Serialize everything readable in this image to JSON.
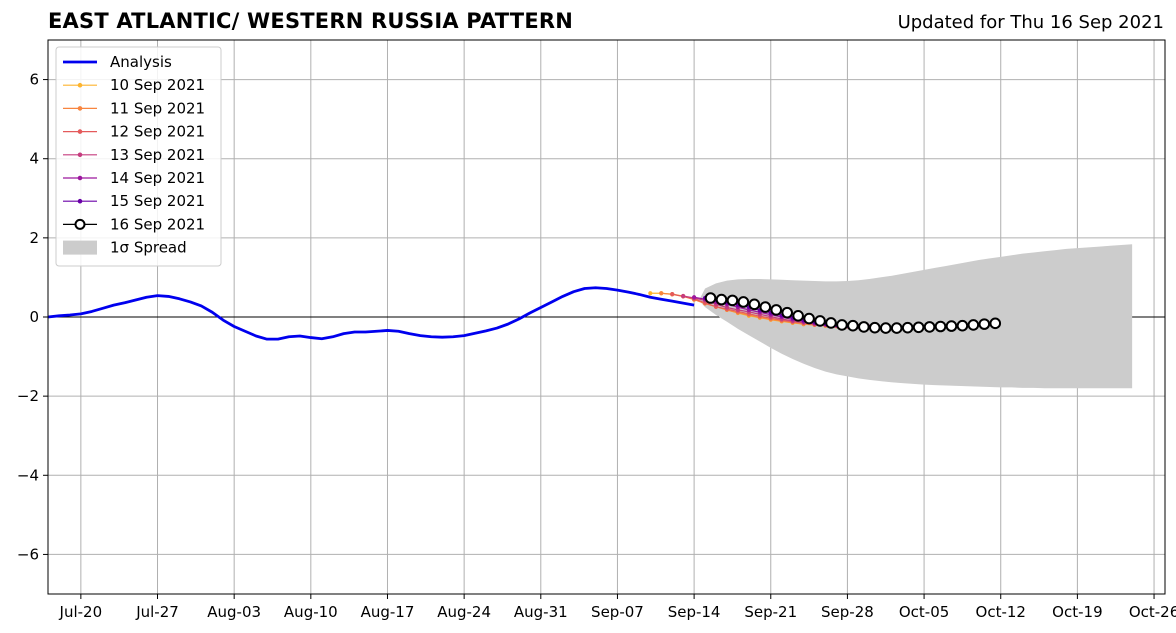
{
  "header": {
    "title": "EAST ATLANTIC/ WESTERN RUSSIA PATTERN",
    "updated": "Updated for Thu 16 Sep 2021"
  },
  "chart_data": {
    "type": "line",
    "title": "EAST ATLANTIC/ WESTERN RUSSIA PATTERN",
    "xlabel": "",
    "ylabel": "",
    "x_start": "2021-07-17",
    "xlim_days": [
      0,
      102
    ],
    "ylim": [
      -7,
      7
    ],
    "yticks": [
      -6,
      -4,
      -2,
      0,
      2,
      4,
      6
    ],
    "ytick_labels": [
      "−6",
      "−4",
      "−2",
      "0",
      "2",
      "4",
      "6"
    ],
    "xticks_day": [
      3,
      10,
      17,
      24,
      31,
      38,
      45,
      52,
      59,
      66,
      73,
      80,
      87,
      94,
      101
    ],
    "xtick_labels": [
      "Jul-20",
      "Jul-27",
      "Aug-03",
      "Aug-10",
      "Aug-17",
      "Aug-24",
      "Aug-31",
      "Sep-07",
      "Sep-14",
      "Sep-21",
      "Sep-28",
      "Oct-05",
      "Oct-12",
      "Oct-19",
      "Oct-26"
    ],
    "grid": true,
    "legend_position": "upper-left",
    "analysis": {
      "name": "Analysis",
      "color": "#0000ee",
      "points": [
        [
          0,
          0.0
        ],
        [
          1,
          0.03
        ],
        [
          2,
          0.05
        ],
        [
          3,
          0.08
        ],
        [
          4,
          0.14
        ],
        [
          5,
          0.22
        ],
        [
          6,
          0.3
        ],
        [
          7,
          0.36
        ],
        [
          8,
          0.43
        ],
        [
          9,
          0.5
        ],
        [
          10,
          0.54
        ],
        [
          11,
          0.52
        ],
        [
          12,
          0.46
        ],
        [
          13,
          0.38
        ],
        [
          14,
          0.28
        ],
        [
          15,
          0.12
        ],
        [
          16,
          -0.08
        ],
        [
          17,
          -0.24
        ],
        [
          18,
          -0.36
        ],
        [
          19,
          -0.48
        ],
        [
          20,
          -0.56
        ],
        [
          21,
          -0.56
        ],
        [
          22,
          -0.5
        ],
        [
          23,
          -0.48
        ],
        [
          24,
          -0.52
        ],
        [
          25,
          -0.55
        ],
        [
          26,
          -0.5
        ],
        [
          27,
          -0.42
        ],
        [
          28,
          -0.38
        ],
        [
          29,
          -0.38
        ],
        [
          30,
          -0.36
        ],
        [
          31,
          -0.34
        ],
        [
          32,
          -0.36
        ],
        [
          33,
          -0.42
        ],
        [
          34,
          -0.47
        ],
        [
          35,
          -0.5
        ],
        [
          36,
          -0.51
        ],
        [
          37,
          -0.5
        ],
        [
          38,
          -0.47
        ],
        [
          39,
          -0.41
        ],
        [
          40,
          -0.35
        ],
        [
          41,
          -0.28
        ],
        [
          42,
          -0.18
        ],
        [
          43,
          -0.05
        ],
        [
          44,
          0.1
        ],
        [
          45,
          0.24
        ],
        [
          46,
          0.38
        ],
        [
          47,
          0.52
        ],
        [
          48,
          0.64
        ],
        [
          49,
          0.72
        ],
        [
          50,
          0.74
        ],
        [
          51,
          0.72
        ],
        [
          52,
          0.68
        ],
        [
          53,
          0.63
        ],
        [
          54,
          0.57
        ],
        [
          55,
          0.5
        ],
        [
          56,
          0.45
        ],
        [
          57,
          0.4
        ],
        [
          58,
          0.35
        ],
        [
          59,
          0.3
        ]
      ]
    },
    "series": [
      {
        "name": "10 Sep 2021",
        "color": "#fdb42f",
        "start_day": 55,
        "values": [
          0.6,
          0.6,
          0.58,
          0.53,
          0.44,
          0.35,
          0.26,
          0.18,
          0.1,
          0.03,
          -0.02,
          -0.07,
          -0.11,
          -0.15,
          -0.18,
          -0.2,
          -0.22,
          -0.23,
          -0.24,
          -0.24,
          -0.25
        ]
      },
      {
        "name": "11 Sep 2021",
        "color": "#f8853f",
        "start_day": 56,
        "values": [
          0.6,
          0.57,
          0.52,
          0.44,
          0.34,
          0.26,
          0.18,
          0.11,
          0.05,
          -0.01,
          -0.06,
          -0.1,
          -0.14,
          -0.18,
          -0.2,
          -0.22,
          -0.23,
          -0.24,
          -0.24,
          -0.25
        ]
      },
      {
        "name": "12 Sep 2021",
        "color": "#e45a5b",
        "start_day": 57,
        "values": [
          0.58,
          0.52,
          0.46,
          0.36,
          0.26,
          0.2,
          0.14,
          0.08,
          0.02,
          -0.03,
          -0.08,
          -0.12,
          -0.15,
          -0.18,
          -0.2,
          -0.21,
          -0.22,
          -0.23,
          -0.24
        ]
      },
      {
        "name": "13 Sep 2021",
        "color": "#c53d7f",
        "start_day": 58,
        "values": [
          0.53,
          0.48,
          0.42,
          0.32,
          0.24,
          0.18,
          0.13,
          0.07,
          0.01,
          -0.05,
          -0.1,
          -0.14,
          -0.18,
          -0.2,
          -0.22,
          -0.23,
          -0.24,
          -0.25
        ]
      },
      {
        "name": "14 Sep 2021",
        "color": "#9c179e",
        "start_day": 59,
        "values": [
          0.5,
          0.45,
          0.38,
          0.32,
          0.25,
          0.18,
          0.12,
          0.06,
          0.0,
          -0.06,
          -0.11,
          -0.15,
          -0.18,
          -0.21,
          -0.23,
          -0.24,
          -0.25
        ]
      },
      {
        "name": "15 Sep 2021",
        "color": "#6a00a8",
        "start_day": 60,
        "values": [
          0.48,
          0.43,
          0.37,
          0.31,
          0.25,
          0.17,
          0.11,
          0.04,
          -0.02,
          -0.08,
          -0.13,
          -0.17,
          -0.2,
          -0.22,
          -0.24,
          -0.25
        ]
      },
      {
        "name": "16 Sep 2021",
        "color": "#000000",
        "start_day": 60.5,
        "values": [
          0.48,
          0.44,
          0.42,
          0.38,
          0.32,
          0.25,
          0.18,
          0.11,
          0.03,
          -0.04,
          -0.1,
          -0.15,
          -0.2,
          -0.22,
          -0.25,
          -0.27,
          -0.28,
          -0.28,
          -0.27,
          -0.26,
          -0.25,
          -0.24,
          -0.23,
          -0.22,
          -0.2,
          -0.18,
          -0.16
        ]
      }
    ],
    "spread": {
      "name": "1σ Spread",
      "color": "#cccccc",
      "days": [
        59.5,
        60,
        61,
        62,
        63,
        64,
        65,
        66,
        67,
        68,
        69,
        70,
        71,
        72,
        73,
        74,
        75,
        76,
        77,
        78,
        79,
        80,
        81,
        82,
        83,
        84,
        85,
        86,
        87,
        88,
        89,
        90,
        91,
        92,
        93,
        94,
        95,
        96,
        97,
        98,
        99
      ],
      "upper": [
        0.45,
        0.72,
        0.85,
        0.92,
        0.95,
        0.96,
        0.96,
        0.95,
        0.94,
        0.93,
        0.92,
        0.91,
        0.9,
        0.9,
        0.91,
        0.93,
        0.96,
        1.0,
        1.04,
        1.09,
        1.14,
        1.19,
        1.24,
        1.29,
        1.34,
        1.39,
        1.44,
        1.48,
        1.52,
        1.56,
        1.6,
        1.63,
        1.66,
        1.69,
        1.72,
        1.74,
        1.76,
        1.78,
        1.8,
        1.82,
        1.84
      ],
      "lower": [
        0.4,
        0.25,
        0.05,
        -0.12,
        -0.3,
        -0.46,
        -0.62,
        -0.78,
        -0.93,
        -1.06,
        -1.18,
        -1.29,
        -1.38,
        -1.45,
        -1.5,
        -1.55,
        -1.59,
        -1.62,
        -1.65,
        -1.67,
        -1.69,
        -1.71,
        -1.72,
        -1.73,
        -1.74,
        -1.75,
        -1.76,
        -1.77,
        -1.78,
        -1.78,
        -1.79,
        -1.79,
        -1.8,
        -1.8,
        -1.8,
        -1.8,
        -1.8,
        -1.8,
        -1.8,
        -1.8,
        -1.8
      ]
    }
  }
}
